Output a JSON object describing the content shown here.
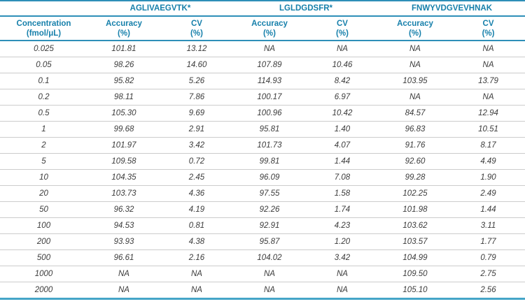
{
  "colors": {
    "accent_text": "#1780ab",
    "rule_teal": "#2e8fb8",
    "rule_bottom": "#45a5c8",
    "row_divider": "#cccccc",
    "data_text": "#3c3c3c"
  },
  "table": {
    "group_headers": [
      "AGLIVAEGVTK*",
      "LGLDGDSFR*",
      "FNWYVDGVEVHNAK"
    ],
    "column_headers": [
      {
        "line1": "Concentration",
        "line2": "(fmol/μL)"
      },
      {
        "line1": "Accuracy",
        "line2": "(%)"
      },
      {
        "line1": "CV",
        "line2": "(%)"
      },
      {
        "line1": "Accuracy",
        "line2": "(%)"
      },
      {
        "line1": "CV",
        "line2": "(%)"
      },
      {
        "line1": "Accuracy",
        "line2": "(%)"
      },
      {
        "line1": "CV",
        "line2": "(%)"
      }
    ],
    "rows": [
      {
        "concentration": "0.025",
        "values": [
          "101.81",
          "13.12",
          "NA",
          "NA",
          "NA",
          "NA"
        ]
      },
      {
        "concentration": "0.05",
        "values": [
          "98.26",
          "14.60",
          "107.89",
          "10.46",
          "NA",
          "NA"
        ]
      },
      {
        "concentration": "0.1",
        "values": [
          "95.82",
          "5.26",
          "114.93",
          "8.42",
          "103.95",
          "13.79"
        ]
      },
      {
        "concentration": "0.2",
        "values": [
          "98.11",
          "7.86",
          "100.17",
          "6.97",
          "NA",
          "NA"
        ]
      },
      {
        "concentration": "0.5",
        "values": [
          "105.30",
          "9.69",
          "100.96",
          "10.42",
          "84.57",
          "12.94"
        ]
      },
      {
        "concentration": "1",
        "values": [
          "99.68",
          "2.91",
          "95.81",
          "1.40",
          "96.83",
          "10.51"
        ]
      },
      {
        "concentration": "2",
        "values": [
          "101.97",
          "3.42",
          "101.73",
          "4.07",
          "91.76",
          "8.17"
        ]
      },
      {
        "concentration": "5",
        "values": [
          "109.58",
          "0.72",
          "99.81",
          "1.44",
          "92.60",
          "4.49"
        ]
      },
      {
        "concentration": "10",
        "values": [
          "104.35",
          "2.45",
          "96.09",
          "7.08",
          "99.28",
          "1.90"
        ]
      },
      {
        "concentration": "20",
        "values": [
          "103.73",
          "4.36",
          "97.55",
          "1.58",
          "102.25",
          "2.49"
        ]
      },
      {
        "concentration": "50",
        "values": [
          "96.32",
          "4.19",
          "92.26",
          "1.74",
          "101.98",
          "1.44"
        ]
      },
      {
        "concentration": "100",
        "values": [
          "94.53",
          "0.81",
          "92.91",
          "4.23",
          "103.62",
          "3.11"
        ]
      },
      {
        "concentration": "200",
        "values": [
          "93.93",
          "4.38",
          "95.87",
          "1.20",
          "103.57",
          "1.77"
        ]
      },
      {
        "concentration": "500",
        "values": [
          "96.61",
          "2.16",
          "104.02",
          "3.42",
          "104.99",
          "0.79"
        ]
      },
      {
        "concentration": "1000",
        "values": [
          "NA",
          "NA",
          "NA",
          "NA",
          "109.50",
          "2.75"
        ]
      },
      {
        "concentration": "2000",
        "values": [
          "NA",
          "NA",
          "NA",
          "NA",
          "105.10",
          "2.56"
        ]
      }
    ]
  }
}
